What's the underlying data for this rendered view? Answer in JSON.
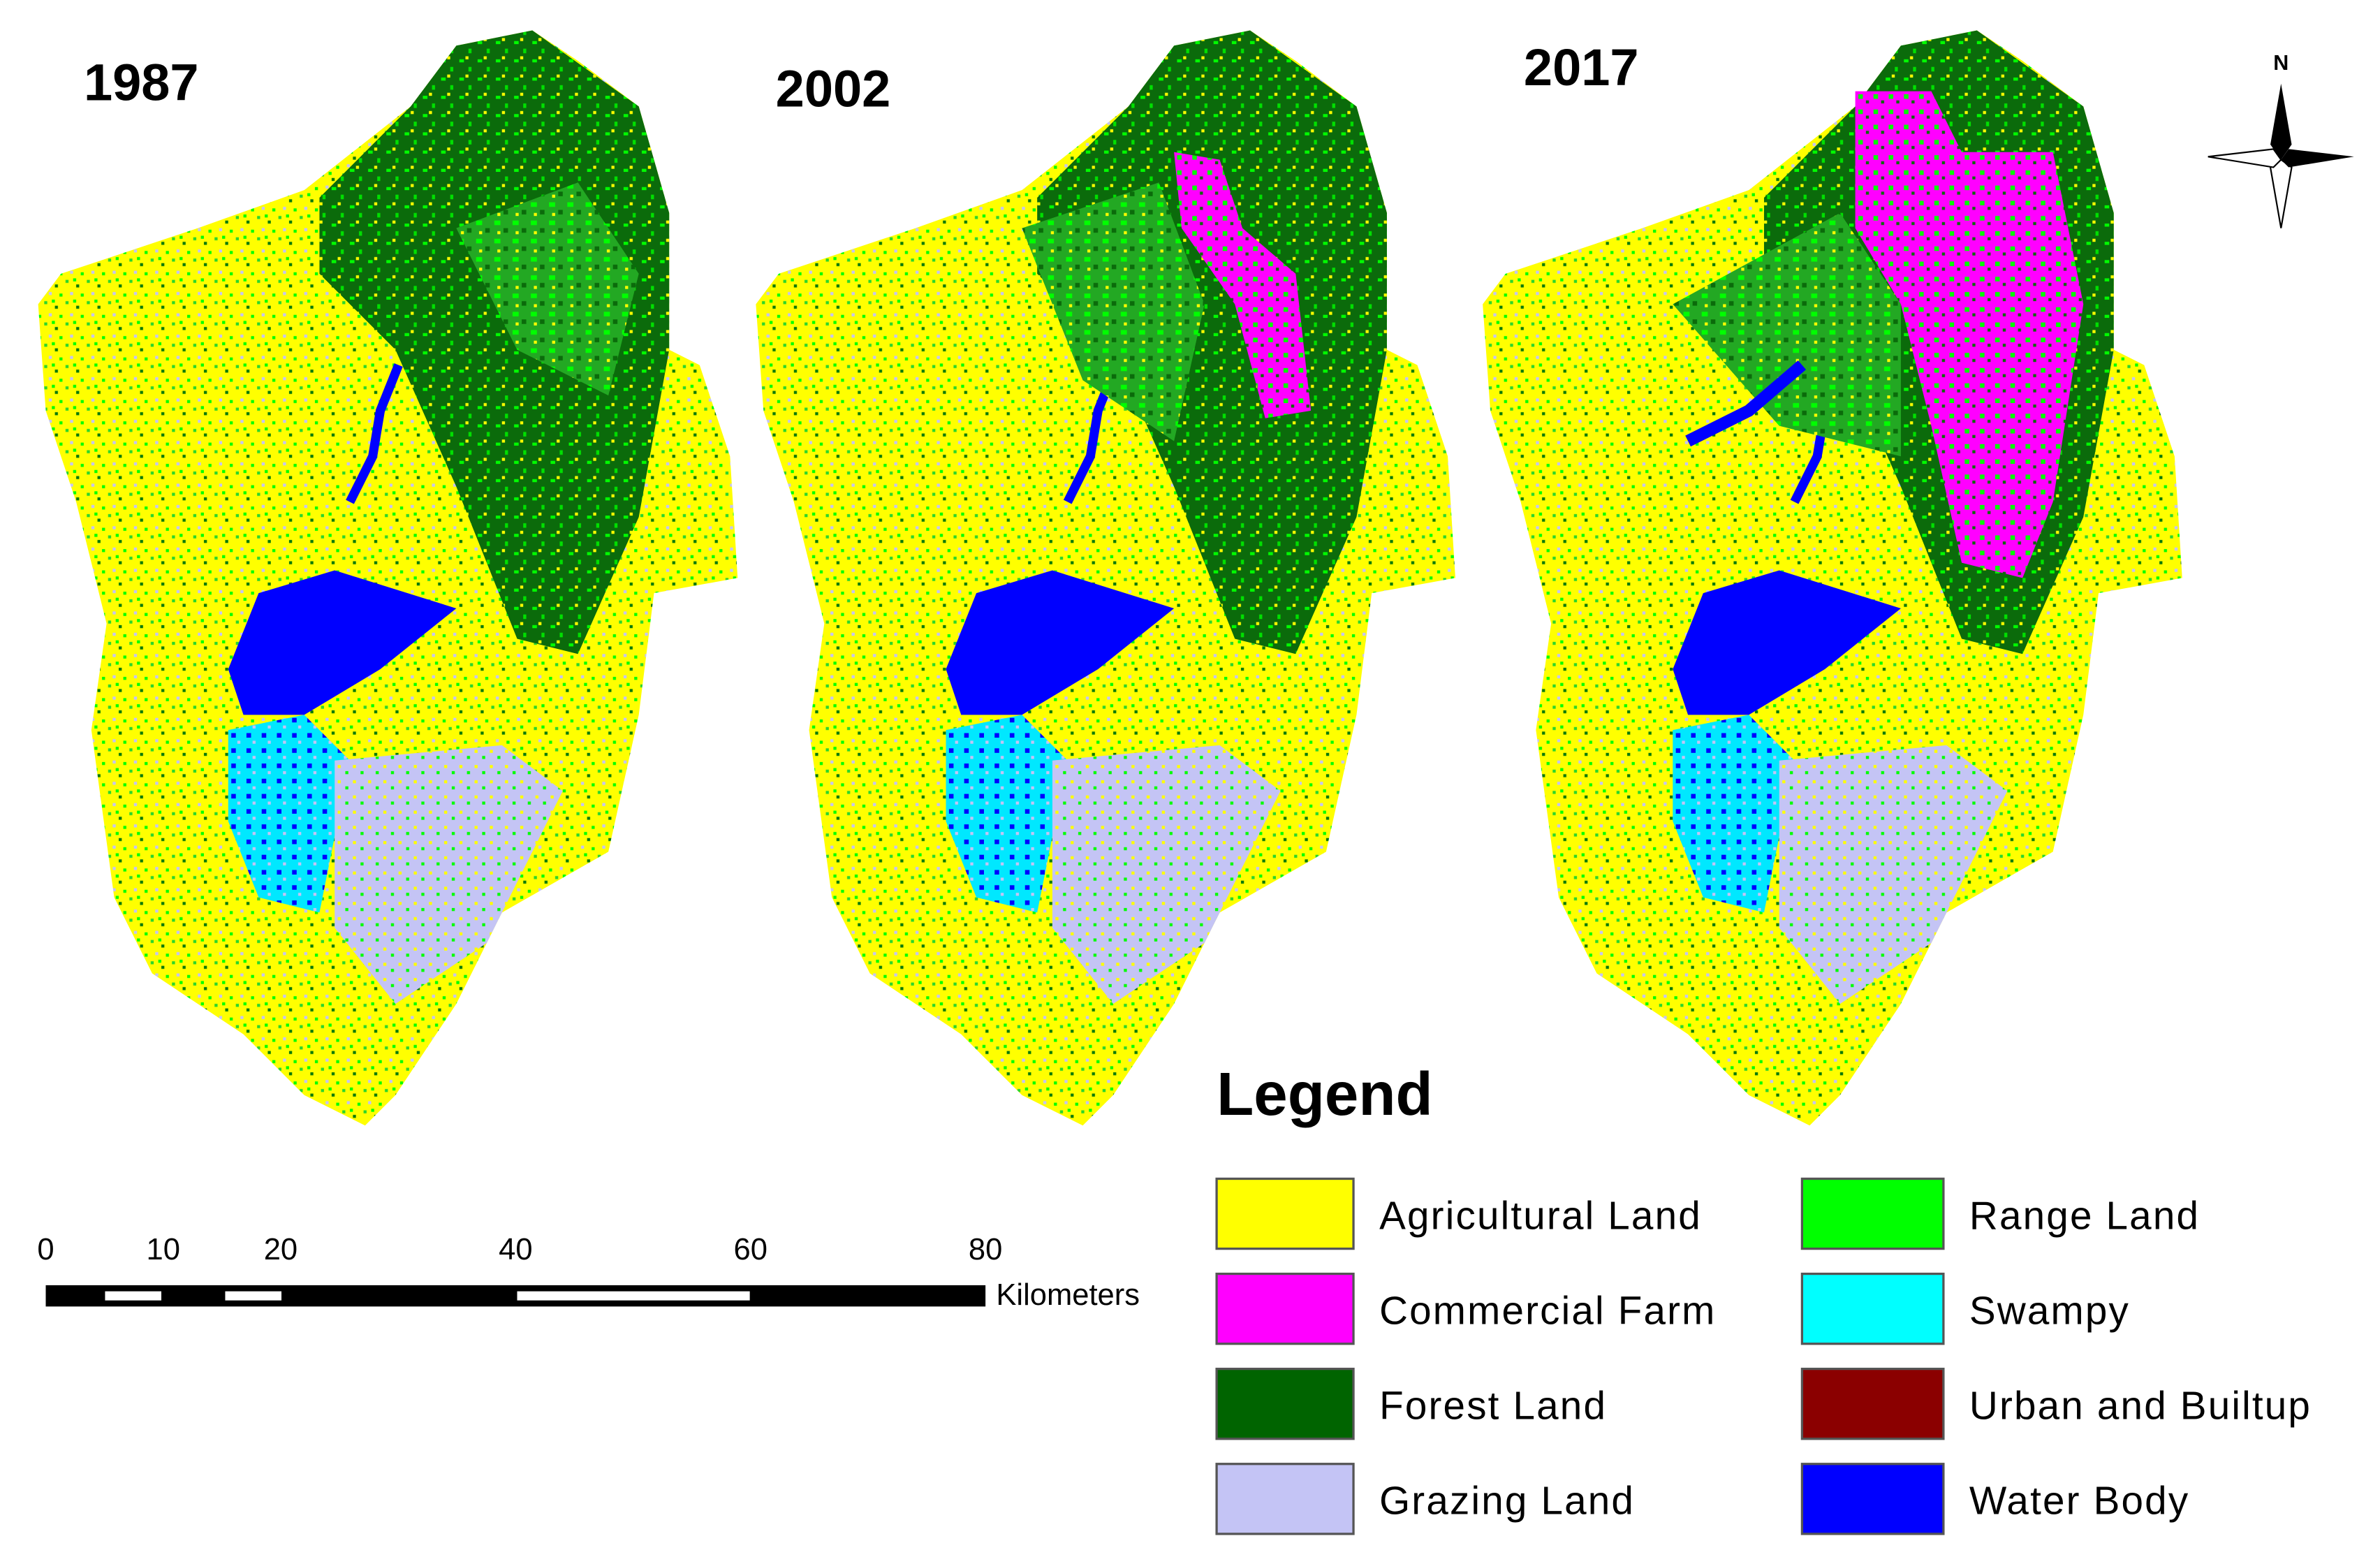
{
  "panels": [
    {
      "title": "1987"
    },
    {
      "title": "2002"
    },
    {
      "title": "2017"
    }
  ],
  "north_arrow": {
    "label": "N"
  },
  "scale_bar": {
    "ticks": [
      0,
      10,
      20,
      40,
      60,
      80
    ],
    "unit": "Kilometers"
  },
  "legend": {
    "title": "Legend",
    "items": [
      {
        "label": "Agricultural Land",
        "color": "#ffff00"
      },
      {
        "label": "Commercial Farm",
        "color": "#ff00ff"
      },
      {
        "label": "Forest Land",
        "color": "#006400"
      },
      {
        "label": "Grazing Land",
        "color": "#c4c4f5"
      },
      {
        "label": "Range Land",
        "color": "#00ff00"
      },
      {
        "label": "Swampy",
        "color": "#00ffff"
      },
      {
        "label": "Urban and Builtup",
        "color": "#8b0000"
      },
      {
        "label": "Water Body",
        "color": "#0000ff"
      }
    ]
  }
}
